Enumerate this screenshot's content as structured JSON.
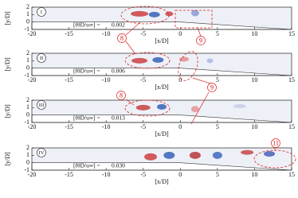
{
  "axes": {
    "xticks": [
      -20,
      -15,
      -10,
      -5,
      0,
      5,
      10,
      15
    ],
    "yticks": [
      2,
      1,
      0,
      -1
    ],
    "xlabel": "[x/D]",
    "ylabel": "[y/D]"
  },
  "panels": [
    {
      "label": "I",
      "annotation": "[fθD/u∞] =",
      "value": "0.002"
    },
    {
      "label": "II",
      "annotation": "[fθD/u∞] =",
      "value": "0.006"
    },
    {
      "label": "III",
      "annotation": "[fθD/u∞] =",
      "value": "0.013"
    },
    {
      "label": "IV",
      "annotation": "[fθD/u∞] =",
      "value": "0.030"
    }
  ],
  "callouts": [
    {
      "label": "8"
    },
    {
      "label": "9"
    },
    {
      "label": "9"
    },
    {
      "label": "8"
    },
    {
      "label": "11"
    }
  ]
}
